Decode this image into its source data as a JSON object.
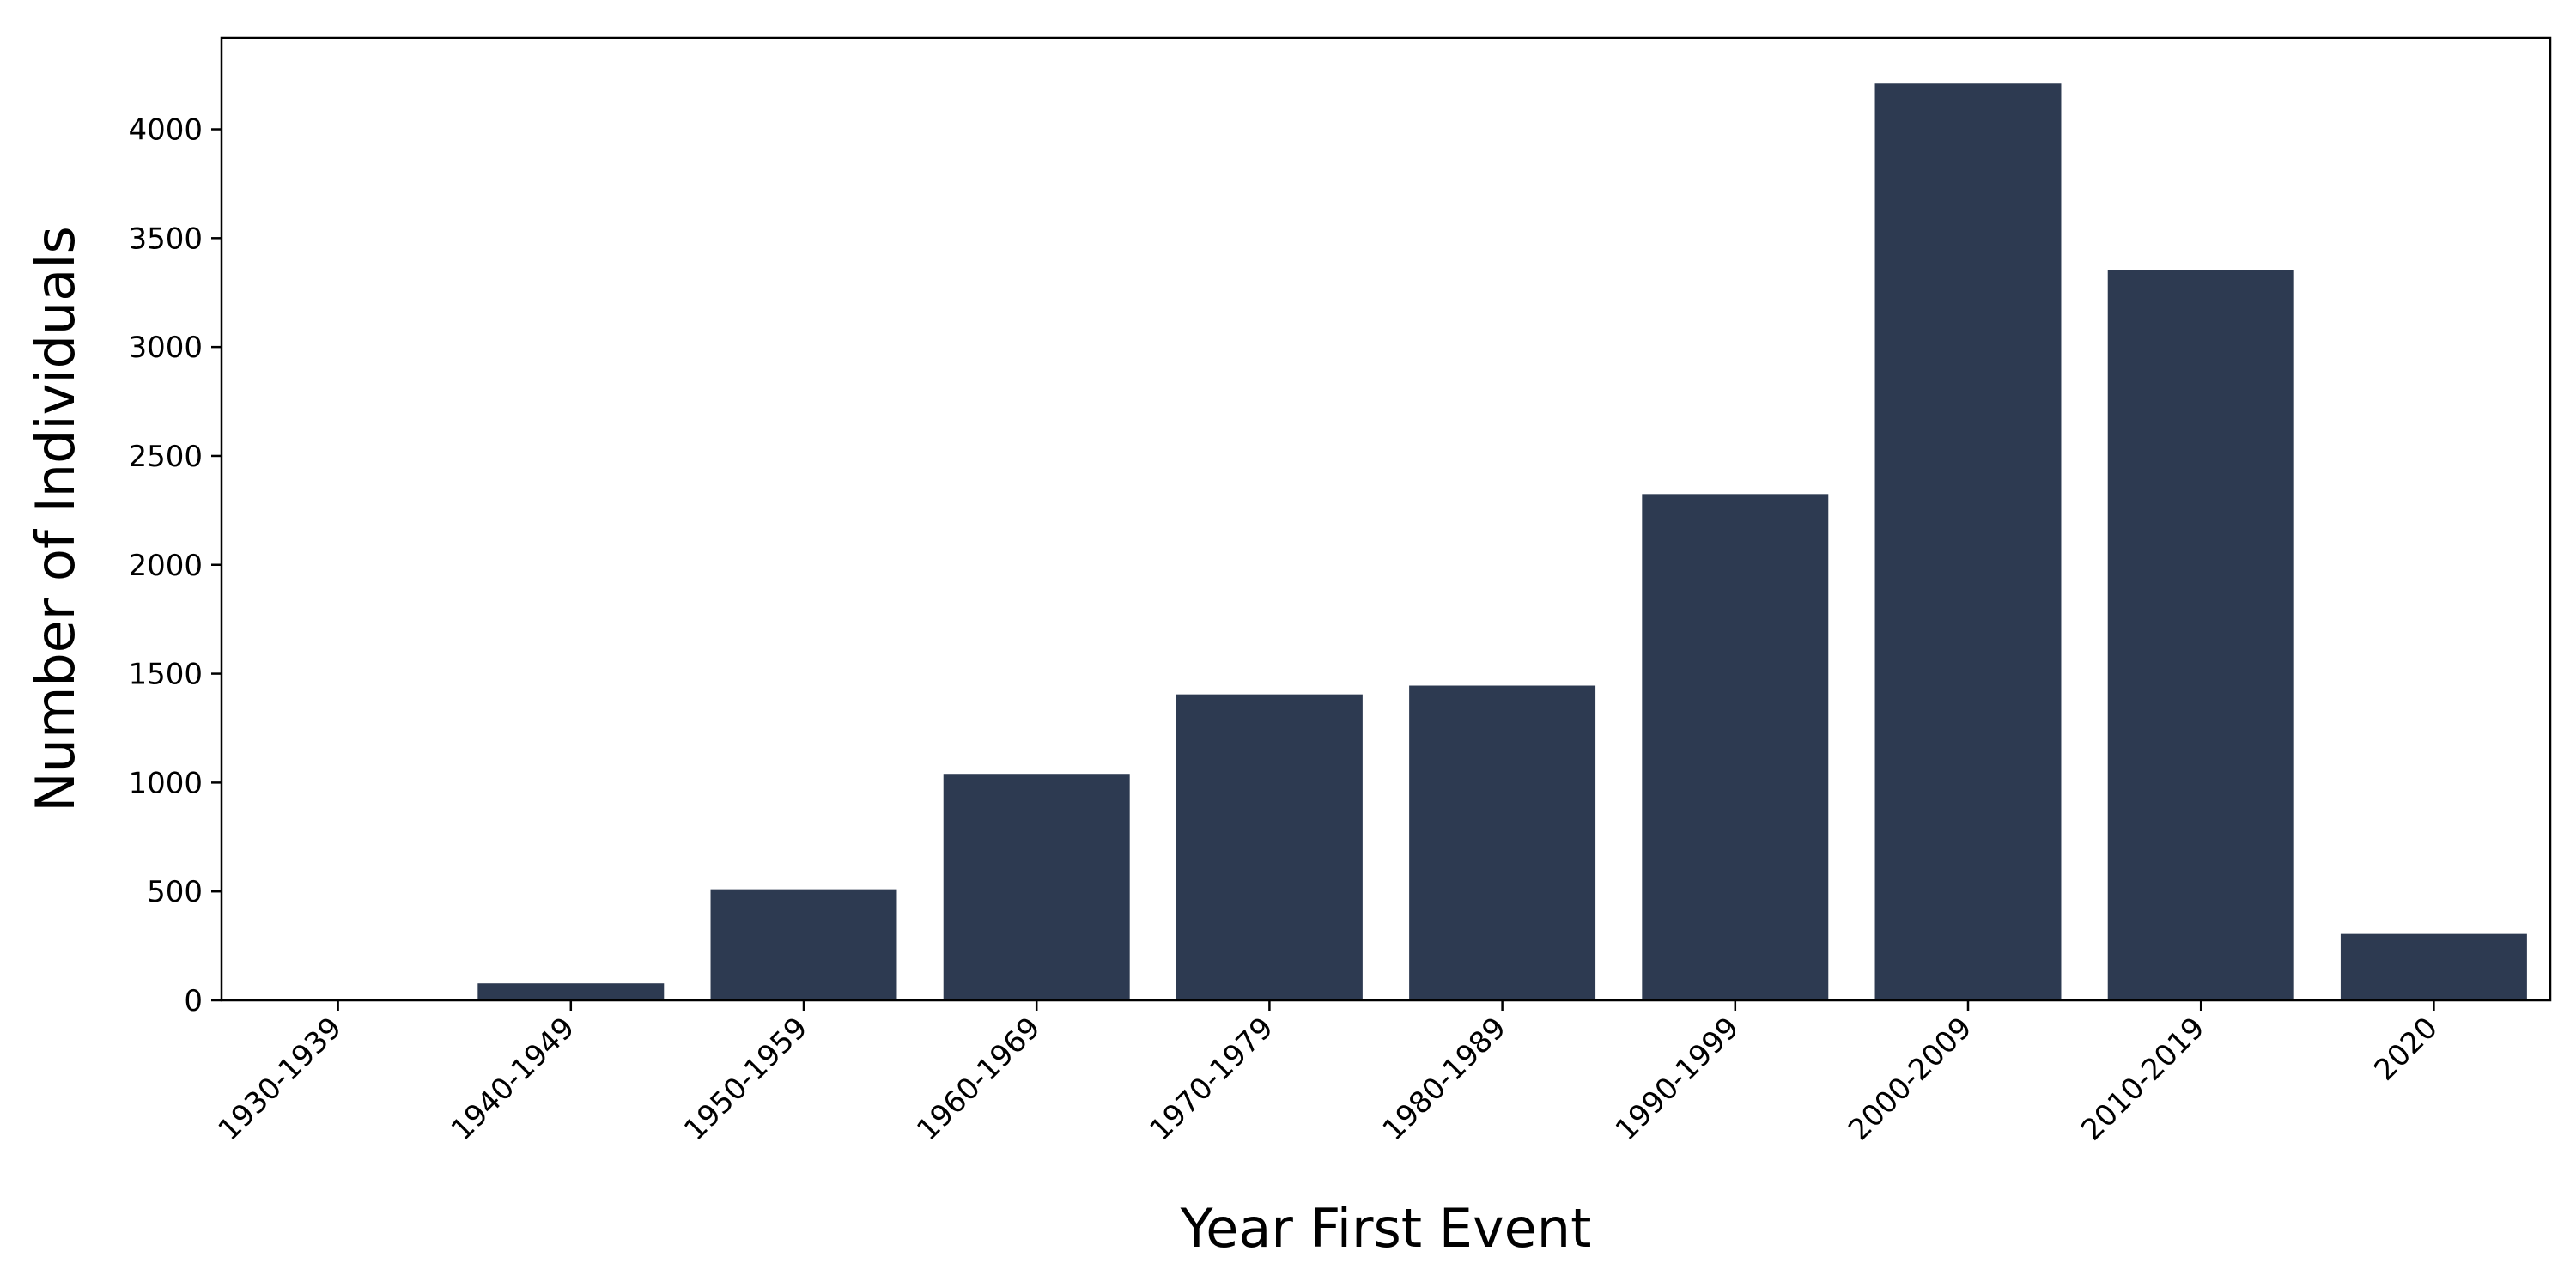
{
  "chart_data": {
    "type": "bar",
    "title": "",
    "xlabel": "Year First Event",
    "ylabel": "Number of Individuals",
    "categories": [
      "1930-1939",
      "1940-1949",
      "1950-1959",
      "1960-1969",
      "1970-1979",
      "1980-1989",
      "1990-1999",
      "2000-2009",
      "2010-2019",
      "2020"
    ],
    "values": [
      2,
      78,
      510,
      1040,
      1405,
      1445,
      2325,
      4210,
      3355,
      305
    ],
    "ylim": [
      0,
      4420
    ],
    "yticks": [
      0,
      500,
      1000,
      1500,
      2000,
      2500,
      3000,
      3500,
      4000
    ],
    "grid": false,
    "legend": "none",
    "bar_color": "#2d3a51"
  }
}
